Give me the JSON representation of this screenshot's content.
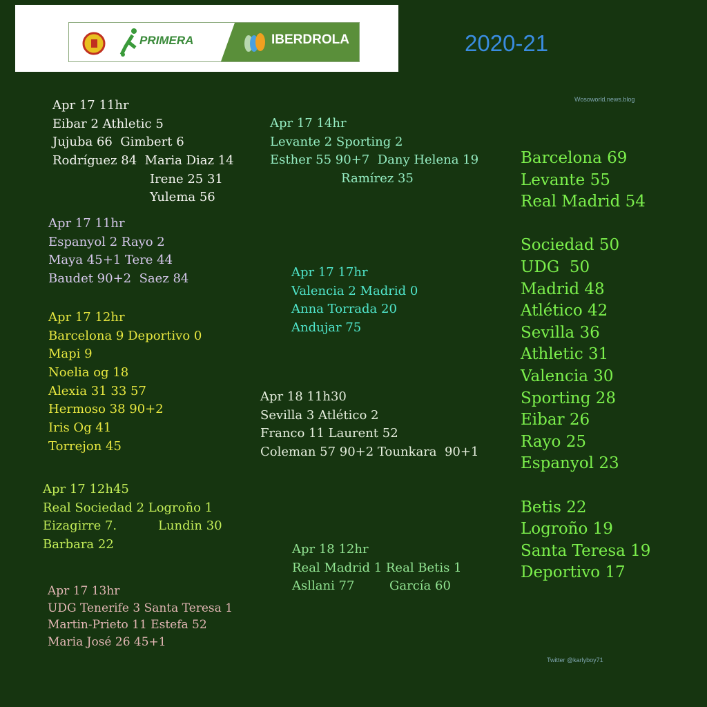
{
  "header": {
    "logo_text_primera": "PRIMERA",
    "logo_text_iberdrola": "IBERDROLA",
    "season": "2020-21",
    "credit_site": "Wosoworld.news.blog",
    "credit_twitter": "Twitter @karlyboy71"
  },
  "colors": {
    "background": "#163510",
    "standings": "#7cf04c",
    "season": "#3a8ce0"
  },
  "matches": [
    {
      "lines": [
        "Apr 17 11hr",
        "Eibar 2 Athletic 5",
        "Jujuba 66  Gimbert 6",
        "Rodríguez 84  Maria Diaz 14",
        "Irene 25 31",
        "Yulema 56"
      ]
    },
    {
      "lines": [
        "Apr 17 11hr",
        "Espanyol 2 Rayo 2",
        "Maya 45+1 Tere 44",
        "Baudet 90+2  Saez 84"
      ]
    },
    {
      "lines": [
        "Apr 17 12hr",
        "Barcelona 9 Deportivo 0",
        "Mapi 9",
        "Noelia og 18",
        "Alexia 31 33 57",
        "Hermoso 38 90+2",
        "Iris Og 41",
        "Torrejon 45"
      ]
    },
    {
      "lines": [
        "Apr 17 12h45",
        "Real Sociedad 2 Logroño 1",
        "Eizagirre 7.",
        "Lundin 30",
        "Barbara 22"
      ]
    },
    {
      "lines": [
        "Apr 17 13hr",
        "UDG Tenerife 3 Santa Teresa 1",
        "Martin-Prieto 11 Estefa 52",
        "Maria José 26 45+1"
      ]
    },
    {
      "lines": [
        "Apr 17 14hr",
        "Levante 2 Sporting 2",
        "Esther 55 90+7  Dany Helena 19",
        "Ramírez 35"
      ]
    },
    {
      "lines": [
        "Apr 17 17hr",
        "Valencia 2 Madrid 0",
        "Anna Torrada 20",
        "Andujar 75"
      ]
    },
    {
      "lines": [
        "Apr 18 11h30",
        "Sevilla 3 Atlético 2",
        "Franco 11 Laurent 52",
        "Coleman 57 90+2 Tounkara  90+1"
      ]
    },
    {
      "lines": [
        "Apr 18 12hr",
        "Real Madrid 1 Real Betis 1",
        "Asllani 77",
        "García 60"
      ]
    }
  ],
  "standings": [
    "Barcelona 69",
    "Levante 55",
    "Real Madrid 54",
    "Sociedad 50",
    "UDG  50",
    "Madrid 48",
    "Atlético 42",
    "Sevilla 36",
    "Athletic 31",
    "Valencia 30",
    "Sporting 28",
    "Eibar 26",
    "Rayo 25",
    "Espanyol 23",
    "Betis 22",
    "Logroño 19",
    "Santa Teresa 19",
    "Deportivo 17"
  ]
}
